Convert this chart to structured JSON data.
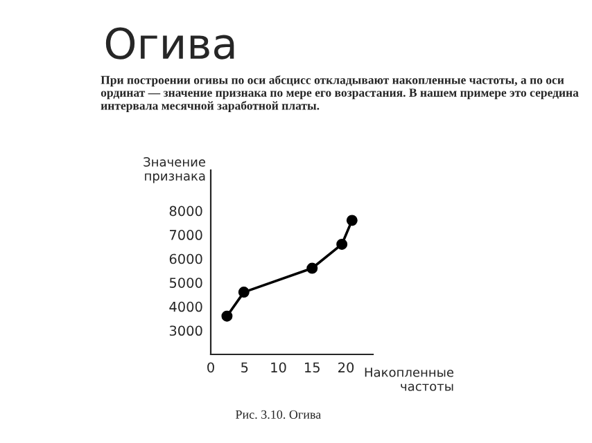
{
  "chart_data": {
    "type": "line",
    "title": "Огива",
    "subtitle": "При построении огивы по оси абсцисс откладывают накопленные частоты, а по оси ординат — значение признака по мере его возрастания. В нашем примере это середина интервала месячной заработной платы.",
    "xlabel": "Накопленные\nчастоты",
    "ylabel": "Значение\nпризнака",
    "annotations": [
      "Рис. 3.10. Огива"
    ],
    "series": [
      {
        "color": "#000000",
        "x": [
          2.4,
          4.9,
          15,
          19.4,
          20.9
        ],
        "values": [
          3600,
          4600,
          5600,
          6600,
          7600
        ]
      }
    ],
    "xlim": [
      0,
      24
    ],
    "xticks": [
      0,
      5,
      10,
      15,
      20
    ],
    "ylim": [
      2000,
      9700
    ],
    "yticks": [
      3000,
      4000,
      5000,
      6000,
      7000,
      8000
    ],
    "marker": "circle",
    "line_style": "solid",
    "grid": false,
    "legend": false
  }
}
